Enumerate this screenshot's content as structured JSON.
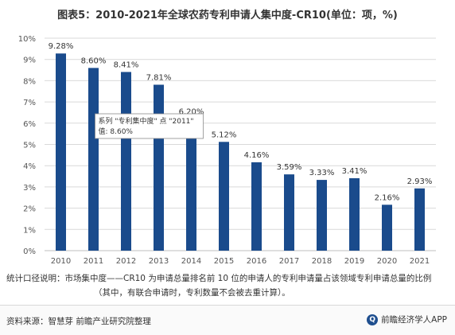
{
  "title": "图表5：2010-2021年全球农药专利申请人集中度-CR10(单位：项，%)",
  "chart_data": {
    "type": "bar",
    "title": "图表5：2010-2021年全球农药专利申请人集中度-CR10(单位：项，%)",
    "categories": [
      "2010",
      "2011",
      "2012",
      "2013",
      "2014",
      "2015",
      "2016",
      "2017",
      "2018",
      "2019",
      "2020",
      "2021"
    ],
    "values": [
      9.28,
      8.6,
      8.41,
      7.81,
      6.2,
      5.12,
      4.16,
      3.59,
      3.33,
      3.41,
      2.16,
      2.93
    ],
    "value_labels": [
      "9.28%",
      "8.60%",
      "8.41%",
      "7.81%",
      "6.20%",
      "5.12%",
      "4.16%",
      "3.59%",
      "3.33%",
      "3.41%",
      "2.16%",
      "2.93%"
    ],
    "ylim": [
      0,
      10
    ],
    "y_ticks": [
      "0%",
      "1%",
      "2%",
      "3%",
      "4%",
      "5%",
      "6%",
      "7%",
      "8%",
      "9%",
      "10%"
    ],
    "grid": true,
    "bar_color": "#1a4b8c",
    "tooltip": {
      "line1": "系列 \"专利集中度\" 点 \"2011\"",
      "line2": "值: 8.60%",
      "category": "2011"
    }
  },
  "notes": {
    "line1": "统计口径说明：市场集中度——CR10 为申请总量排名前 10 位的申请人的专利申请量占该领域专利申请总量的比例",
    "line2": "（其中，有联合申请时，专利数量不会被去重计算）。"
  },
  "footer": {
    "source": "资料来源：智慧芽 前瞻产业研究院整理",
    "brand": "前瞻经济学人APP",
    "brand_logo_text": "Q"
  }
}
